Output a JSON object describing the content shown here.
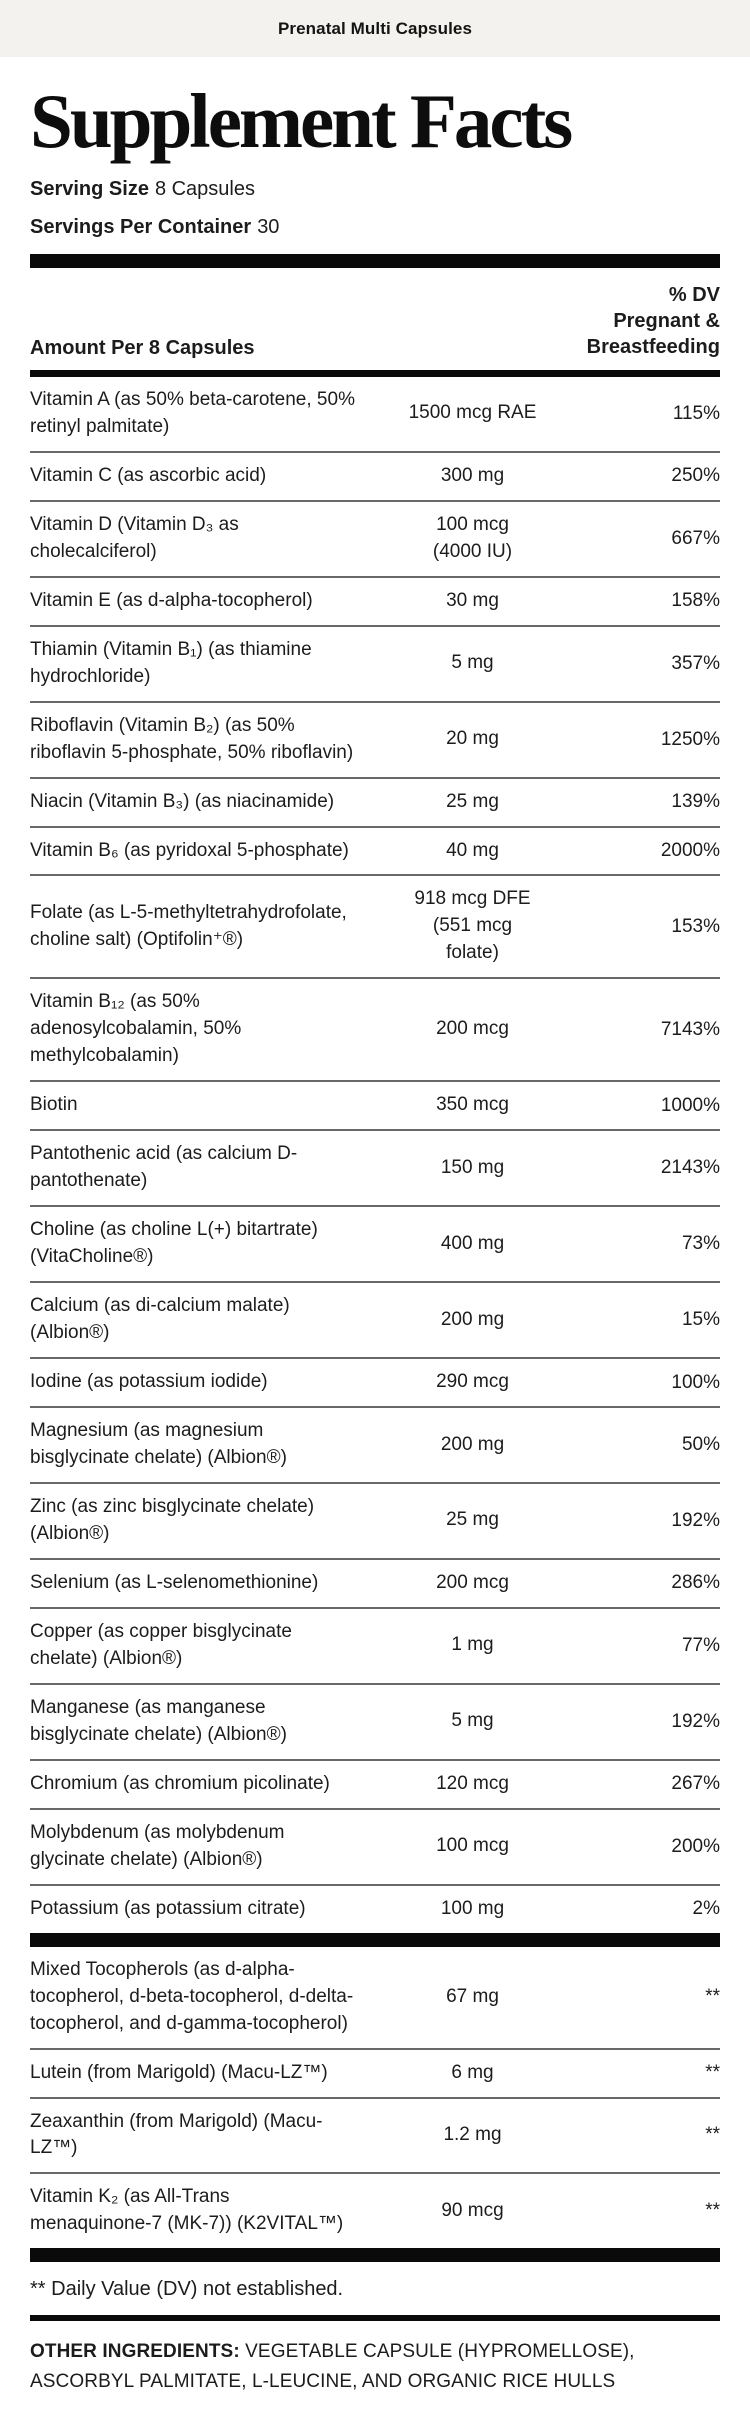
{
  "header": {
    "product_name": "Prenatal Multi Capsules"
  },
  "title": "Supplement Facts",
  "serving": {
    "serving_size_label": "Serving Size",
    "serving_size_value": "8 Capsules",
    "servings_per_container_label": "Servings Per Container",
    "servings_per_container_value": "30"
  },
  "table": {
    "amount_header": "Amount Per 8 Capsules",
    "dv_header": "% DV\nPregnant &\nBreastfeeding",
    "rows": [
      {
        "name": "Vitamin A (as 50% beta-carotene, 50% retinyl palmitate)",
        "amount": "1500 mcg RAE",
        "dv": "115%"
      },
      {
        "name": "Vitamin C (as ascorbic acid)",
        "amount": "300 mg",
        "dv": "250%"
      },
      {
        "name": "Vitamin D (Vitamin D₃ as cholecalciferol)",
        "amount": "100 mcg\n(4000 IU)",
        "dv": "667%"
      },
      {
        "name": "Vitamin E (as d-alpha-tocopherol)",
        "amount": "30 mg",
        "dv": "158%"
      },
      {
        "name": "Thiamin (Vitamin B₁) (as thiamine hydrochloride)",
        "amount": "5 mg",
        "dv": "357%"
      },
      {
        "name": "Riboflavin (Vitamin B₂) (as 50% riboflavin 5-phosphate, 50% riboflavin)",
        "amount": "20 mg",
        "dv": "1250%"
      },
      {
        "name": "Niacin (Vitamin B₃) (as niacinamide)",
        "amount": "25 mg",
        "dv": "139%"
      },
      {
        "name": "Vitamin B₆ (as pyridoxal 5-phosphate)",
        "amount": "40 mg",
        "dv": "2000%"
      },
      {
        "name": "Folate (as L-5-methyltetrahydrofolate, choline salt) (Optifolin⁺®)",
        "amount": "918 mcg DFE\n(551 mcg\nfolate)",
        "dv": "153%"
      },
      {
        "name": "Vitamin B₁₂ (as 50% adenosylcobalamin, 50% methylcobalamin)",
        "amount": "200 mcg",
        "dv": "7143%"
      },
      {
        "name": "Biotin",
        "amount": "350 mcg",
        "dv": "1000%"
      },
      {
        "name": "Pantothenic acid (as calcium D-pantothenate)",
        "amount": "150 mg",
        "dv": "2143%"
      },
      {
        "name": "Choline (as choline L(+) bitartrate) (VitaCholine®)",
        "amount": "400 mg",
        "dv": "73%"
      },
      {
        "name": "Calcium (as di-calcium malate) (Albion®)",
        "amount": "200 mg",
        "dv": "15%"
      },
      {
        "name": "Iodine (as potassium iodide)",
        "amount": "290 mcg",
        "dv": "100%"
      },
      {
        "name": "Magnesium (as magnesium bisglycinate chelate) (Albion®)",
        "amount": "200 mg",
        "dv": "50%"
      },
      {
        "name": "Zinc (as zinc bisglycinate chelate) (Albion®)",
        "amount": "25 mg",
        "dv": "192%"
      },
      {
        "name": "Selenium (as L-selenomethionine)",
        "amount": "200 mcg",
        "dv": "286%"
      },
      {
        "name": "Copper (as copper bisglycinate chelate) (Albion®)",
        "amount": "1 mg",
        "dv": "77%"
      },
      {
        "name": "Manganese (as manganese bisglycinate chelate) (Albion®)",
        "amount": "5 mg",
        "dv": "192%"
      },
      {
        "name": "Chromium (as chromium picolinate)",
        "amount": "120 mcg",
        "dv": "267%"
      },
      {
        "name": "Molybdenum (as molybdenum glycinate chelate) (Albion®)",
        "amount": "100 mcg",
        "dv": "200%"
      },
      {
        "name": "Potassium (as potassium citrate)",
        "amount": "100 mg",
        "dv": "2%"
      }
    ],
    "no_dv_rows": [
      {
        "name": "Mixed Tocopherols (as d-alpha-tocopherol, d-beta-tocopherol, d-delta-tocopherol, and d-gamma-tocopherol)",
        "amount": "67 mg",
        "dv": "**"
      },
      {
        "name": "Lutein (from Marigold) (Macu-LZ™)",
        "amount": "6 mg",
        "dv": "**"
      },
      {
        "name": "Zeaxanthin (from Marigold) (Macu-LZ™)",
        "amount": "1.2 mg",
        "dv": "**"
      },
      {
        "name": "Vitamin K₂ (as All-Trans menaquinone-7 (MK-7)) (K2VITAL™)",
        "amount": "90 mcg",
        "dv": "**"
      }
    ]
  },
  "footnote": "** Daily Value (DV) not established.",
  "other_ingredients": {
    "label": "OTHER INGREDIENTS:",
    "text": "VEGETABLE CAPSULE (HYPROMELLOSE), ASCORBYL PALMITATE, L-LEUCINE, AND ORGANIC RICE HULLS"
  },
  "colors": {
    "topbar_background": "#f3f2ee",
    "text": "#1c1c1c",
    "divider_thick": "#0a0a0a",
    "divider_thin": "#696969",
    "page_background": "#ffffff"
  }
}
